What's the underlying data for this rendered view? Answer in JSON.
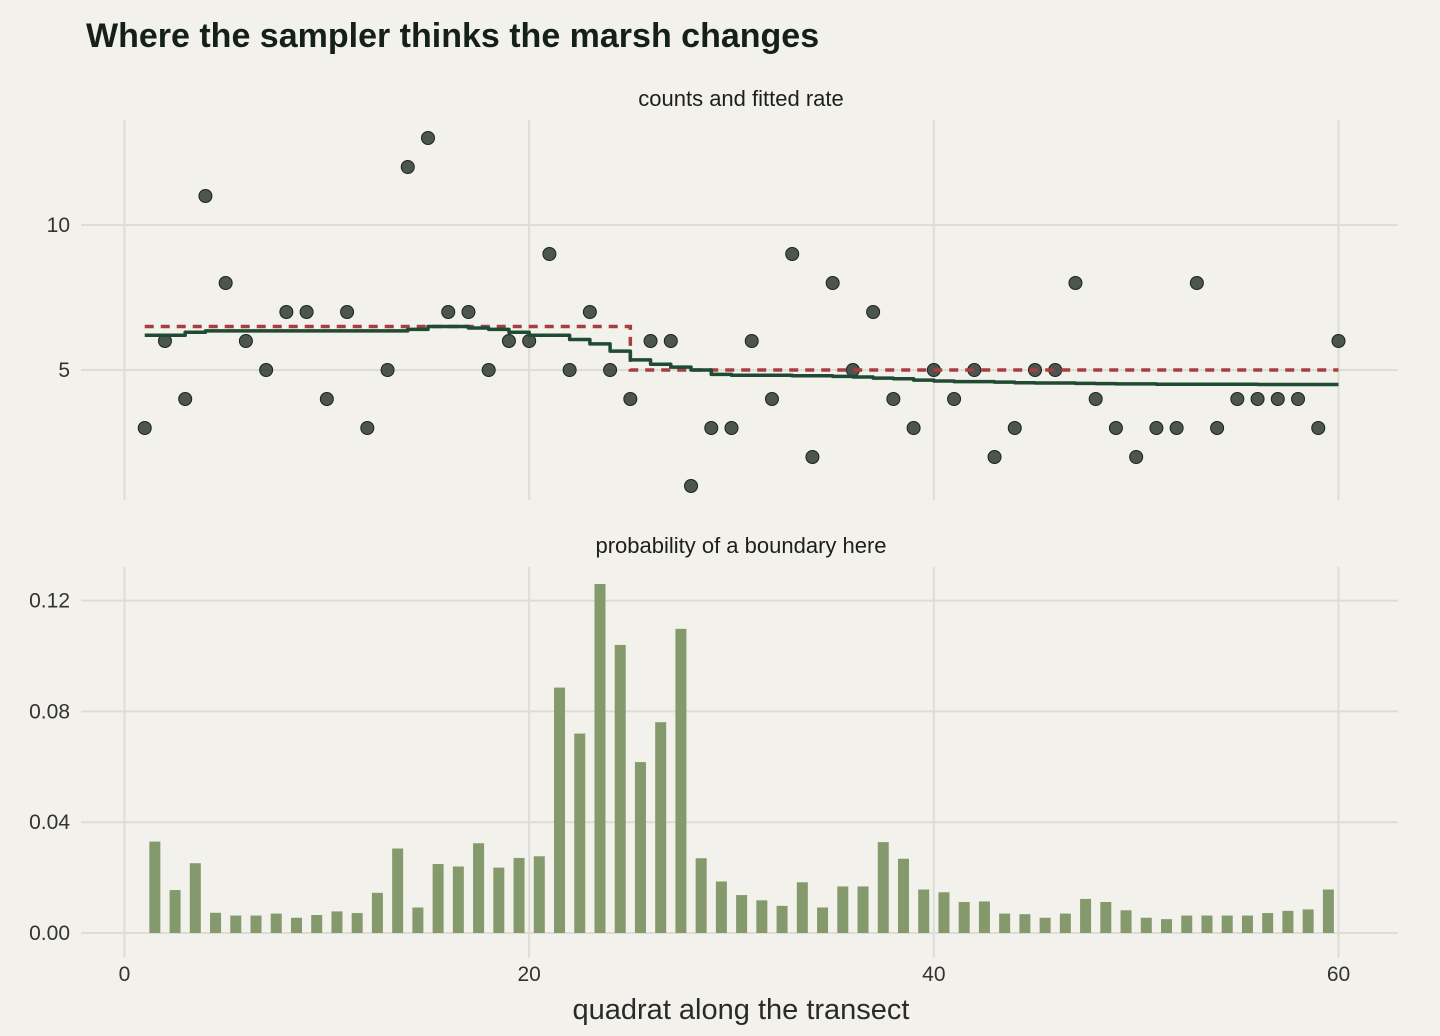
{
  "title": "Where the sampler thinks the marsh changes",
  "colors": {
    "background": "#f2f1eb",
    "points": "#2f3a33",
    "fitted_rate": "#1f4a34",
    "segment_mean": "#a63f3f",
    "bars": "#849a6c",
    "grid": "#dddcd5"
  },
  "chart_data": [
    {
      "type": "scatter",
      "panel_title": "counts and fitted rate",
      "xlim": [
        -2,
        63
      ],
      "ylim": [
        0.8,
        13.5
      ],
      "xticks": [
        0,
        20,
        40,
        60
      ],
      "yticks": [
        5,
        10
      ],
      "ytick_labels": [
        "5",
        "10"
      ],
      "grid": true,
      "series": [
        {
          "kind": "points",
          "x": [
            1,
            2,
            3,
            4,
            5,
            6,
            7,
            8,
            9,
            10,
            11,
            12,
            13,
            14,
            15,
            16,
            17,
            18,
            19,
            20,
            21,
            22,
            23,
            24,
            25,
            26,
            27,
            28,
            29,
            30,
            31,
            32,
            33,
            34,
            35,
            36,
            37,
            38,
            39,
            40,
            41,
            42,
            43,
            44,
            45,
            46,
            47,
            48,
            49,
            50,
            51,
            52,
            53,
            54,
            55,
            56,
            57,
            58,
            59,
            60
          ],
          "y": [
            3,
            6,
            4,
            11,
            8,
            6,
            5,
            7,
            7,
            4,
            7,
            3,
            5,
            12,
            13,
            7,
            7,
            5,
            6,
            6,
            9,
            5,
            7,
            5,
            4,
            6,
            6,
            1,
            3,
            3,
            6,
            4,
            9,
            2,
            8,
            5,
            7,
            4,
            3,
            5,
            4,
            5,
            2,
            3,
            5,
            5,
            8,
            4,
            3,
            2,
            3,
            3,
            8,
            3,
            4,
            4,
            4,
            4,
            3,
            6
          ]
        },
        {
          "kind": "step",
          "x": [
            1,
            2,
            3,
            4,
            5,
            6,
            7,
            8,
            9,
            10,
            11,
            12,
            13,
            14,
            15,
            16,
            17,
            18,
            19,
            20,
            21,
            22,
            23,
            24,
            25,
            26,
            27,
            28,
            29,
            30,
            31,
            32,
            33,
            34,
            35,
            36,
            37,
            38,
            39,
            40,
            41,
            42,
            43,
            44,
            45,
            46,
            47,
            48,
            49,
            50,
            51,
            52,
            53,
            54,
            55,
            56,
            57,
            58,
            59,
            60
          ],
          "y": [
            6.2,
            6.2,
            6.3,
            6.35,
            6.35,
            6.35,
            6.35,
            6.35,
            6.35,
            6.35,
            6.35,
            6.35,
            6.35,
            6.4,
            6.5,
            6.5,
            6.45,
            6.4,
            6.3,
            6.2,
            6.2,
            6.05,
            5.9,
            5.65,
            5.35,
            5.2,
            5.1,
            5.0,
            4.85,
            4.82,
            4.82,
            4.82,
            4.8,
            4.8,
            4.78,
            4.76,
            4.72,
            4.7,
            4.65,
            4.62,
            4.6,
            4.6,
            4.58,
            4.56,
            4.55,
            4.55,
            4.54,
            4.53,
            4.52,
            4.52,
            4.51,
            4.51,
            4.51,
            4.51,
            4.51,
            4.5,
            4.5,
            4.5,
            4.5,
            4.5
          ]
        },
        {
          "kind": "dashed-step",
          "x": [
            1,
            25,
            25,
            60
          ],
          "y": [
            6.5,
            6.5,
            5.0,
            5.0
          ]
        }
      ]
    },
    {
      "type": "bar",
      "panel_title": "probability of a boundary here",
      "xlim": [
        -2,
        63
      ],
      "ylim": [
        -0.001,
        0.131
      ],
      "xticks": [
        0,
        20,
        40,
        60
      ],
      "xtick_labels": [
        "0",
        "20",
        "40",
        "60"
      ],
      "yticks": [
        0,
        0.04,
        0.08,
        0.12
      ],
      "ytick_labels": [
        "0.00",
        "0.04",
        "0.08",
        "0.12"
      ],
      "xlabel": "quadrat along the transect",
      "grid": true,
      "x": [
        1.5,
        2.5,
        3.5,
        4.5,
        5.5,
        6.5,
        7.5,
        8.5,
        9.5,
        10.5,
        11.5,
        12.5,
        13.5,
        14.5,
        15.5,
        16.5,
        17.5,
        18.5,
        19.5,
        20.5,
        21.5,
        22.5,
        23.5,
        24.5,
        25.5,
        26.5,
        27.5,
        28.5,
        29.5,
        30.5,
        31.5,
        32.5,
        33.5,
        34.5,
        35.5,
        36.5,
        37.5,
        38.5,
        39.5,
        40.5,
        41.5,
        42.5,
        43.5,
        44.5,
        45.5,
        46.5,
        47.5,
        48.5,
        49.5,
        50.5,
        51.5,
        52.5,
        53.5,
        54.5,
        55.5,
        56.5,
        57.5,
        58.5,
        59.5
      ],
      "values": [
        0.033,
        0.0155,
        0.0252,
        0.0073,
        0.0063,
        0.0063,
        0.007,
        0.0055,
        0.0065,
        0.0078,
        0.0072,
        0.0145,
        0.0305,
        0.0092,
        0.0249,
        0.024,
        0.0324,
        0.0236,
        0.0271,
        0.0277,
        0.0886,
        0.072,
        0.126,
        0.104,
        0.0617,
        0.0761,
        0.1098,
        0.027,
        0.0186,
        0.0137,
        0.0118,
        0.0098,
        0.0183,
        0.0092,
        0.0168,
        0.0168,
        0.0328,
        0.0268,
        0.0157,
        0.0147,
        0.0112,
        0.0114,
        0.007,
        0.0068,
        0.0055,
        0.007,
        0.0123,
        0.0112,
        0.0082,
        0.0055,
        0.005,
        0.0063,
        0.0063,
        0.0063,
        0.0063,
        0.0072,
        0.008,
        0.0085,
        0.0157
      ]
    }
  ]
}
